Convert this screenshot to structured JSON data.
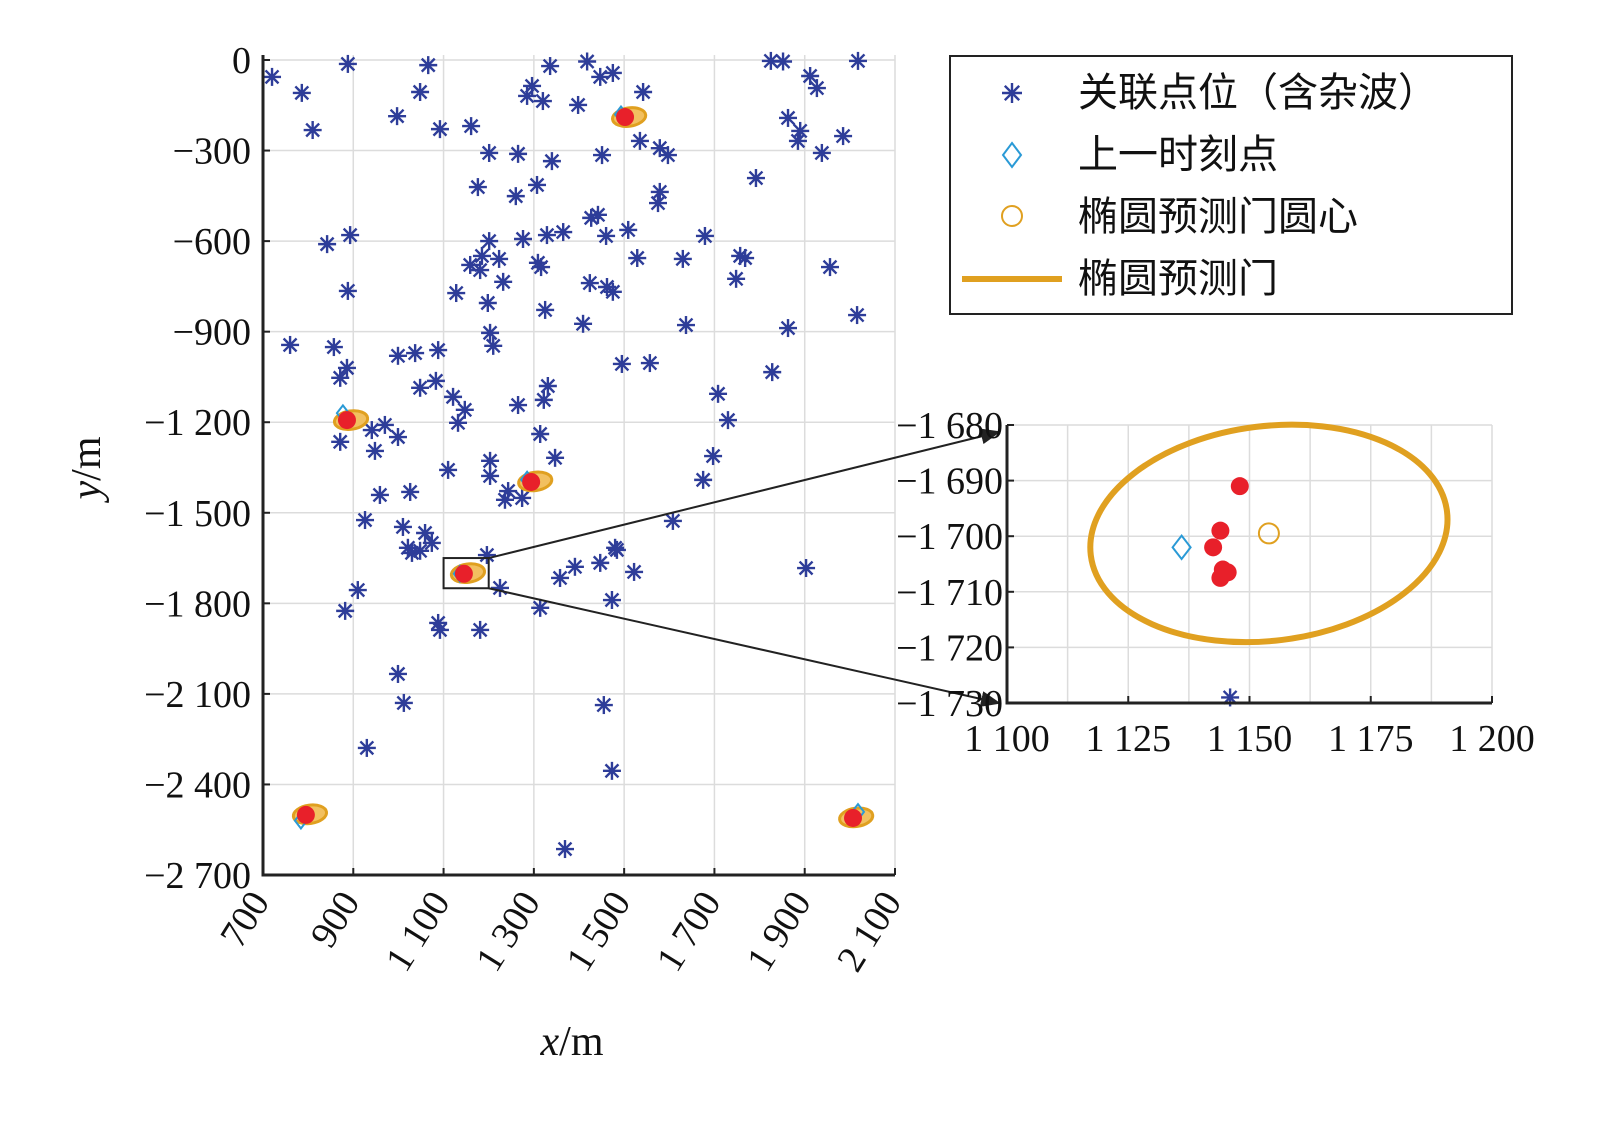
{
  "chart_data": {
    "type": "scatter",
    "xlabel_var": "x",
    "xlabel_unit": "/m",
    "ylabel_var": "y",
    "ylabel_unit": "/m",
    "xlim": [
      700,
      2100
    ],
    "ylim": [
      -2700,
      0
    ],
    "xticks": [
      700,
      900,
      1100,
      1300,
      1500,
      1700,
      1900,
      2100
    ],
    "xtick_labels": [
      "700",
      "900",
      "1 100",
      "1 300",
      "1 500",
      "1 700",
      "1 900",
      "2 100"
    ],
    "yticks": [
      0,
      -300,
      -600,
      -900,
      -1200,
      -1500,
      -1800,
      -2100,
      -2400,
      -2700
    ],
    "ytick_labels": [
      "0",
      "−300",
      "−600",
      "−900",
      "−1 200",
      "−1 500",
      "−1 800",
      "−2 100",
      "−2 400",
      "−2 700"
    ],
    "grid": true,
    "legend": {
      "position": "top-right",
      "entries": [
        "关联点位（含杂波）",
        "上一时刻点",
        "椭圆预测门圆心",
        "椭圆预测门"
      ]
    },
    "colors": {
      "clutter": "#2e3d99",
      "measurement": "#e8202a",
      "previous": "#2a9ad6",
      "gate": "#e0a020",
      "axis": "#222222"
    },
    "clutter_points": [
      [
        720,
        -56
      ],
      [
        786,
        -109
      ],
      [
        810,
        -232
      ],
      [
        888,
        -13
      ],
      [
        1066,
        -17
      ],
      [
        1048,
        -106
      ],
      [
        997,
        -186
      ],
      [
        1092,
        -229
      ],
      [
        1161,
        -219
      ],
      [
        1418,
        -5
      ],
      [
        1447,
        -56
      ],
      [
        1475,
        -43
      ],
      [
        1336,
        -20
      ],
      [
        1296,
        -86
      ],
      [
        1285,
        -119
      ],
      [
        1320,
        -136
      ],
      [
        1398,
        -149
      ],
      [
        1542,
        -106
      ],
      [
        1825,
        -3
      ],
      [
        1852,
        -5
      ],
      [
        1912,
        -53
      ],
      [
        1927,
        -93
      ],
      [
        1863,
        -192
      ],
      [
        1890,
        -235
      ],
      [
        1885,
        -268
      ],
      [
        1938,
        -308
      ],
      [
        1985,
        -252
      ],
      [
        2018,
        -3
      ],
      [
        1201,
        -308
      ],
      [
        1265,
        -311
      ],
      [
        1340,
        -335
      ],
      [
        1451,
        -315
      ],
      [
        1535,
        -268
      ],
      [
        1579,
        -292
      ],
      [
        1597,
        -315
      ],
      [
        1176,
        -421
      ],
      [
        1260,
        -451
      ],
      [
        1307,
        -414
      ],
      [
        1579,
        -437
      ],
      [
        1575,
        -474
      ],
      [
        1792,
        -391
      ],
      [
        1427,
        -523
      ],
      [
        1442,
        -513
      ],
      [
        1460,
        -583
      ],
      [
        1509,
        -563
      ],
      [
        1365,
        -570
      ],
      [
        1276,
        -593
      ],
      [
        1201,
        -600
      ],
      [
        1329,
        -580
      ],
      [
        893,
        -580
      ],
      [
        842,
        -610
      ],
      [
        1185,
        -649
      ],
      [
        1159,
        -679
      ],
      [
        1181,
        -696
      ],
      [
        1223,
        -659
      ],
      [
        1232,
        -735
      ],
      [
        1198,
        -805
      ],
      [
        1128,
        -772
      ],
      [
        1316,
        -686
      ],
      [
        1309,
        -672
      ],
      [
        1424,
        -739
      ],
      [
        1462,
        -752
      ],
      [
        1475,
        -768
      ],
      [
        1529,
        -656
      ],
      [
        1630,
        -659
      ],
      [
        1679,
        -583
      ],
      [
        1757,
        -649
      ],
      [
        1768,
        -656
      ],
      [
        1748,
        -725
      ],
      [
        1956,
        -686
      ],
      [
        888,
        -765
      ],
      [
        1325,
        -828
      ],
      [
        1409,
        -874
      ],
      [
        1637,
        -878
      ],
      [
        1863,
        -888
      ],
      [
        2016,
        -845
      ],
      [
        760,
        -944
      ],
      [
        857,
        -951
      ],
      [
        886,
        -1020
      ],
      [
        871,
        -1053
      ],
      [
        999,
        -980
      ],
      [
        1037,
        -971
      ],
      [
        1088,
        -961
      ],
      [
        1083,
        -1063
      ],
      [
        1048,
        -1086
      ],
      [
        1121,
        -1116
      ],
      [
        1147,
        -1159
      ],
      [
        1132,
        -1202
      ],
      [
        1203,
        -904
      ],
      [
        1210,
        -947
      ],
      [
        1495,
        -1007
      ],
      [
        1557,
        -1004
      ],
      [
        1828,
        -1034
      ],
      [
        1708,
        -1106
      ],
      [
        1730,
        -1193
      ],
      [
        1331,
        -1080
      ],
      [
        1322,
        -1126
      ],
      [
        1265,
        -1143
      ],
      [
        1314,
        -1239
      ],
      [
        1697,
        -1312
      ],
      [
        1675,
        -1391
      ],
      [
        1608,
        -1527
      ],
      [
        970,
        -1209
      ],
      [
        941,
        -1226
      ],
      [
        999,
        -1249
      ],
      [
        871,
        -1265
      ],
      [
        948,
        -1295
      ],
      [
        1110,
        -1358
      ],
      [
        1203,
        -1328
      ],
      [
        1203,
        -1378
      ],
      [
        1026,
        -1431
      ],
      [
        959,
        -1441
      ],
      [
        926,
        -1524
      ],
      [
        1236,
        -1457
      ],
      [
        1274,
        -1451
      ],
      [
        1347,
        -1318
      ],
      [
        1243,
        -1428
      ],
      [
        1010,
        -1547
      ],
      [
        1059,
        -1567
      ],
      [
        1021,
        -1616
      ],
      [
        1048,
        -1626
      ],
      [
        1074,
        -1600
      ],
      [
        1030,
        -1633
      ],
      [
        1196,
        -1640
      ],
      [
        1480,
        -1616
      ],
      [
        1484,
        -1623
      ],
      [
        1522,
        -1696
      ],
      [
        1447,
        -1666
      ],
      [
        1391,
        -1679
      ],
      [
        1358,
        -1716
      ],
      [
        1225,
        -1749
      ],
      [
        910,
        -1756
      ],
      [
        882,
        -1825
      ],
      [
        1088,
        -1865
      ],
      [
        1092,
        -1888
      ],
      [
        1181,
        -1888
      ],
      [
        1314,
        -1815
      ],
      [
        1473,
        -1789
      ],
      [
        1903,
        -1683
      ],
      [
        999,
        -2034
      ],
      [
        1012,
        -2130
      ],
      [
        1455,
        -2137
      ],
      [
        930,
        -2279
      ],
      [
        1473,
        -2355
      ],
      [
        1369,
        -2614
      ]
    ],
    "targets": [
      {
        "measurement": [
          1502,
          -189
        ],
        "previous": [
          1493,
          -180
        ],
        "gate_center": [
          1511,
          -189
        ],
        "gate_semi_axes": [
          37,
          19
        ]
      },
      {
        "measurement": [
          886,
          -1193
        ],
        "previous": [
          877,
          -1170
        ],
        "gate_center": [
          895,
          -1193
        ],
        "gate_semi_axes": [
          37,
          19
        ]
      },
      {
        "measurement": [
          1294,
          -1398
        ],
        "previous": [
          1285,
          -1390
        ],
        "gate_center": [
          1303,
          -1396
        ],
        "gate_semi_axes": [
          37,
          19
        ]
      },
      {
        "measurement": [
          1145,
          -1702
        ],
        "previous": [
          1136,
          -1702
        ],
        "gate_center": [
          1154,
          -1700
        ],
        "gate_semi_axes": [
          37,
          19
        ]
      },
      {
        "measurement": [
          795,
          -2501
        ],
        "previous": [
          784,
          -2520
        ],
        "gate_center": [
          804,
          -2499
        ],
        "gate_semi_axes": [
          37,
          19
        ]
      },
      {
        "measurement": [
          2007,
          -2511
        ],
        "previous": [
          2018,
          -2491
        ],
        "gate_center": [
          2014,
          -2509
        ],
        "gate_semi_axes": [
          37,
          19
        ]
      }
    ],
    "zoom_box": {
      "xlim": [
        1100,
        1200
      ],
      "ylim": [
        -1750,
        -1650
      ]
    },
    "inset": {
      "xlim": [
        1100,
        1200
      ],
      "ylim": [
        -1730,
        -1680
      ],
      "xticks": [
        1100,
        1125,
        1150,
        1175,
        1200
      ],
      "xtick_labels": [
        "1 100",
        "1 125",
        "1 150",
        "1 175",
        "1 200"
      ],
      "xgrid": [
        1100,
        1112.5,
        1125,
        1137.5,
        1150,
        1162.5,
        1175,
        1187.5,
        1200
      ],
      "yticks": [
        -1680,
        -1690,
        -1700,
        -1710,
        -1720,
        -1730
      ],
      "ytick_labels": [
        "−1 680",
        "−1 690",
        "−1 700",
        "−1 710",
        "−1 720",
        "−1 730"
      ],
      "measurements": [
        [
          1148,
          -1691
        ],
        [
          1144,
          -1699
        ],
        [
          1142.5,
          -1702
        ],
        [
          1144.5,
          -1706
        ],
        [
          1145.5,
          -1706.5
        ],
        [
          1144,
          -1707.5
        ]
      ],
      "previous": [
        1136,
        -1702
      ],
      "gate_center": [
        1154,
        -1699.5
      ],
      "gate_semi_axes": [
        37,
        19.3
      ],
      "clutter_points": [
        [
          1146,
          -1729
        ]
      ]
    }
  }
}
